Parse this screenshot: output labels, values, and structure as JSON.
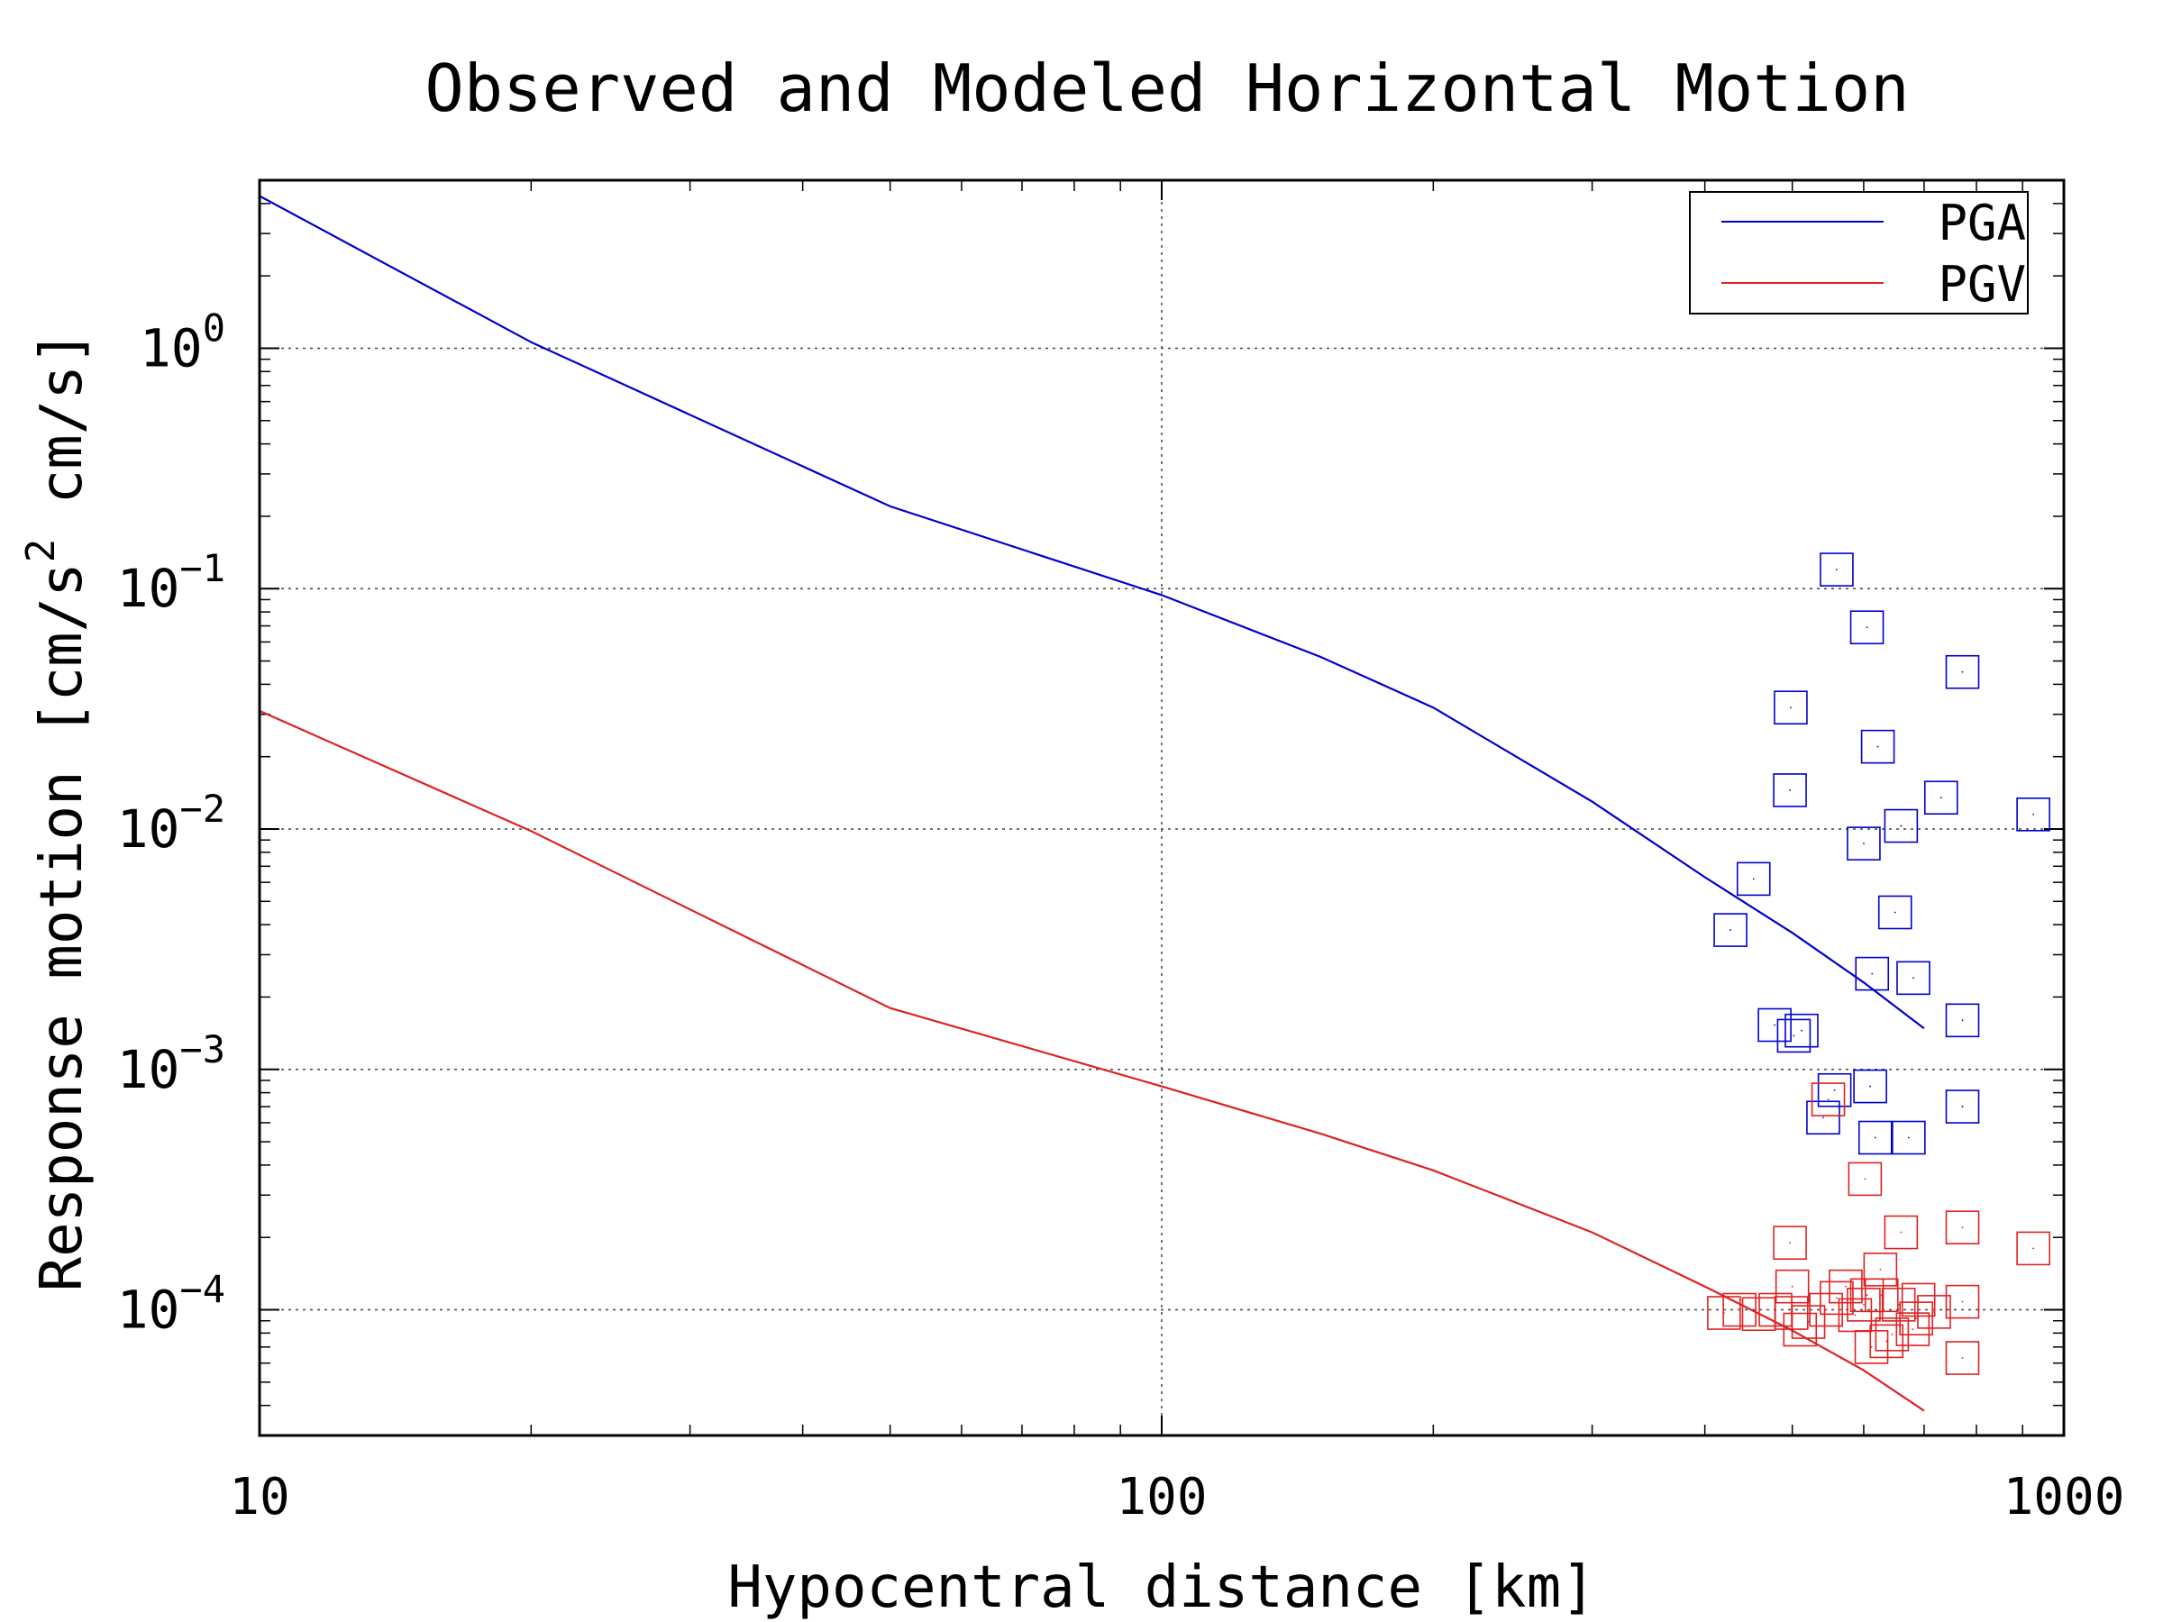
{
  "chart_data": {
    "type": "scatter",
    "title": "Observed and Modeled Horizontal Motion",
    "xlabel": "Hypocentral distance [km]",
    "ylabel": {
      "prefix": "Response motion  [cm/s",
      "sup": "2",
      "suffix": "  cm/s]"
    },
    "x_scale": "log",
    "y_scale": "log",
    "xlim": [
      10,
      1000
    ],
    "ylim": [
      3e-05,
      5
    ],
    "grid": true,
    "legend_position": "top-right",
    "x_ticks": [
      {
        "value": 10,
        "label": "10"
      },
      {
        "value": 100,
        "label": "100"
      },
      {
        "value": 1000,
        "label": "1000"
      }
    ],
    "y_ticks": [
      {
        "value": 1,
        "base": "10",
        "exp": "0"
      },
      {
        "value": 0.1,
        "base": "10",
        "exp": "−1"
      },
      {
        "value": 0.01,
        "base": "10",
        "exp": "−2"
      },
      {
        "value": 0.001,
        "base": "10",
        "exp": "−3"
      },
      {
        "value": 0.0001,
        "base": "10",
        "exp": "−4"
      }
    ],
    "series": [
      {
        "name": "PGA",
        "color": "#0000cc",
        "model_curve": {
          "x": [
            10,
            20,
            50,
            100,
            150,
            200,
            300,
            400,
            500,
            600,
            700
          ],
          "y": [
            4.3,
            1.06,
            0.22,
            0.094,
            0.052,
            0.032,
            0.013,
            0.0063,
            0.0037,
            0.0023,
            0.00148
          ]
        },
        "observed": {
          "x": [
            560,
            605,
            772,
            498,
            622,
            497,
            660,
            731,
            600,
            453,
            427,
            650,
            613,
            681,
            772,
            478,
            502,
            512,
            557,
            610,
            541,
            772,
            618,
            673,
            925
          ],
          "y": [
            0.12,
            0.069,
            0.045,
            0.032,
            0.022,
            0.0145,
            0.0103,
            0.0135,
            0.0087,
            0.0062,
            0.0038,
            0.0045,
            0.0025,
            0.0024,
            0.0016,
            0.00153,
            0.00138,
            0.00145,
            0.00082,
            0.00085,
            0.00063,
            0.0007,
            0.00052,
            0.00052,
            0.0115
          ]
        }
      },
      {
        "name": "PGV",
        "color": "#dd2222",
        "model_curve": {
          "x": [
            10,
            20,
            50,
            100,
            150,
            200,
            300,
            400,
            500,
            600,
            700
          ],
          "y": [
            0.031,
            0.0098,
            0.0018,
            0.00085,
            0.00054,
            0.00038,
            0.00021,
            0.000125,
            8.2e-05,
            5.6e-05,
            3.8e-05
          ]
        },
        "observed": {
          "x": [
            548,
            602,
            497,
            660,
            772,
            925,
            500,
            626,
            560,
            587,
            605,
            690,
            420,
            437,
            459,
            479,
            499,
            521,
            545,
            573,
            600,
            628,
            656,
            686,
            718,
            772,
            510,
            612,
            636,
            645,
            680,
            772
          ],
          "y": [
            0.00075,
            0.00035,
            0.00019,
            0.00021,
            0.00022,
            0.00018,
            0.000125,
            0.000147,
            0.000112,
            9.5e-05,
            0.000115,
            0.00011,
            9.7e-05,
            0.0001,
            9.6e-05,
            0.0001,
            9.7e-05,
            8.9e-05,
            0.0001,
            0.000125,
            0.000105,
            0.000115,
            0.000105,
            9.2e-05,
            9.8e-05,
            0.000108,
            8.27e-05,
            7e-05,
            7.4e-05,
            7.9e-05,
            8.3e-05,
            6.3e-05
          ]
        }
      }
    ]
  }
}
